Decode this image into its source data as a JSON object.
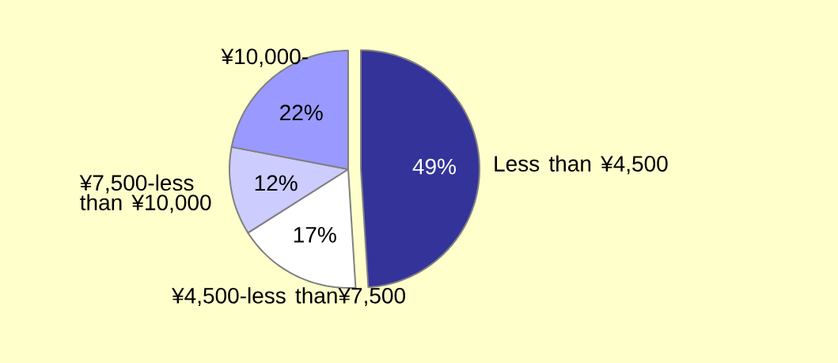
{
  "chart_data": {
    "type": "pie",
    "categories": [
      "Less than ¥4,500",
      "¥4,500-less than¥7,500",
      "¥7,500-less than ¥10,000",
      "¥10,000-"
    ],
    "values": [
      49,
      17,
      12,
      22
    ],
    "colors": [
      "#333399",
      "#ffffff",
      "#ccccff",
      "#9999ff"
    ],
    "value_labels": [
      "49%",
      "17%",
      "12%",
      "22%"
    ]
  }
}
